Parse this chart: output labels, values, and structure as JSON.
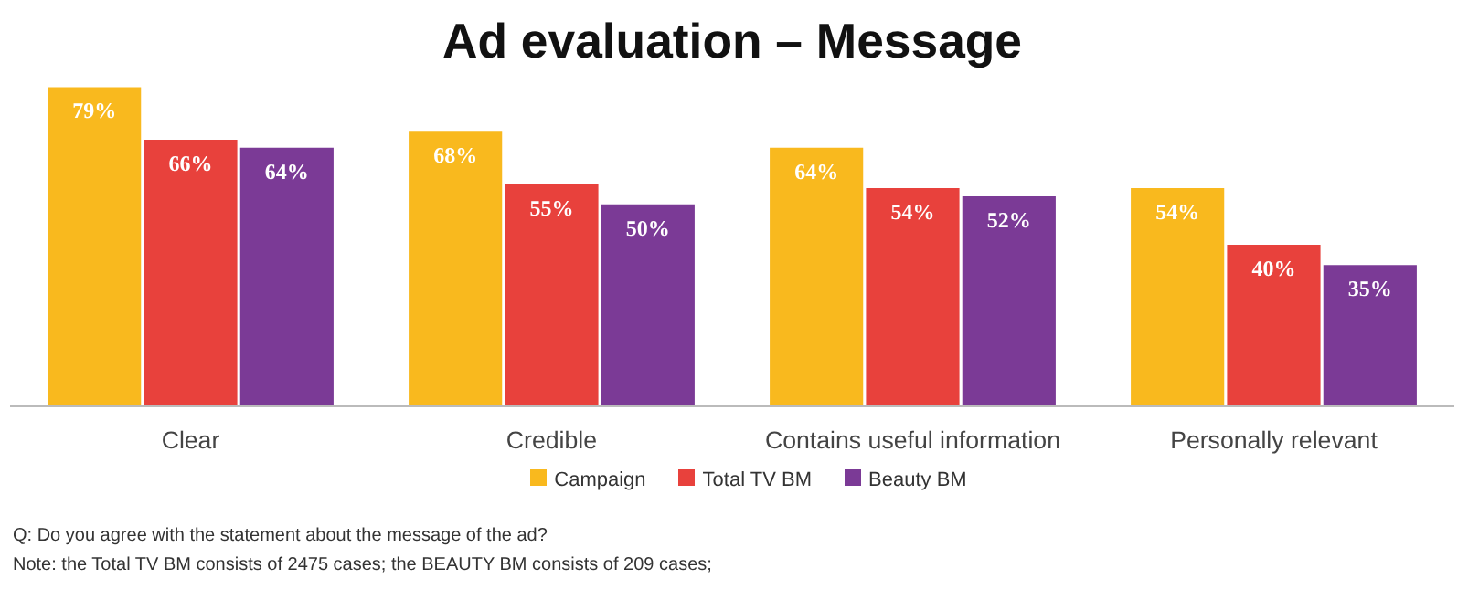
{
  "chart_data": {
    "type": "bar",
    "title": "Ad evaluation – Message",
    "categories": [
      "Clear",
      "Credible",
      "Contains useful information",
      "Personally relevant"
    ],
    "series": [
      {
        "name": "Campaign",
        "color": "#f9b91e",
        "values": [
          79,
          68,
          64,
          54
        ],
        "value_labels": [
          "79%",
          "68%",
          "64%",
          "54%"
        ]
      },
      {
        "name": "Total TV BM",
        "color": "#e8413c",
        "values": [
          66,
          55,
          54,
          40
        ],
        "value_labels": [
          "66%",
          "55%",
          "54%",
          "40%"
        ]
      },
      {
        "name": "Beauty BM",
        "color": "#7b3a96",
        "values": [
          64,
          50,
          52,
          35
        ],
        "value_labels": [
          "64%",
          "50%",
          "52%",
          "35%"
        ]
      }
    ],
    "legend": "bottom",
    "annotations": [
      "Q: Do you agree with the statement about the message of the ad?",
      "Note: the Total TV BM consists of 2475 cases; the BEAUTY BM consists of 209 cases;"
    ]
  }
}
